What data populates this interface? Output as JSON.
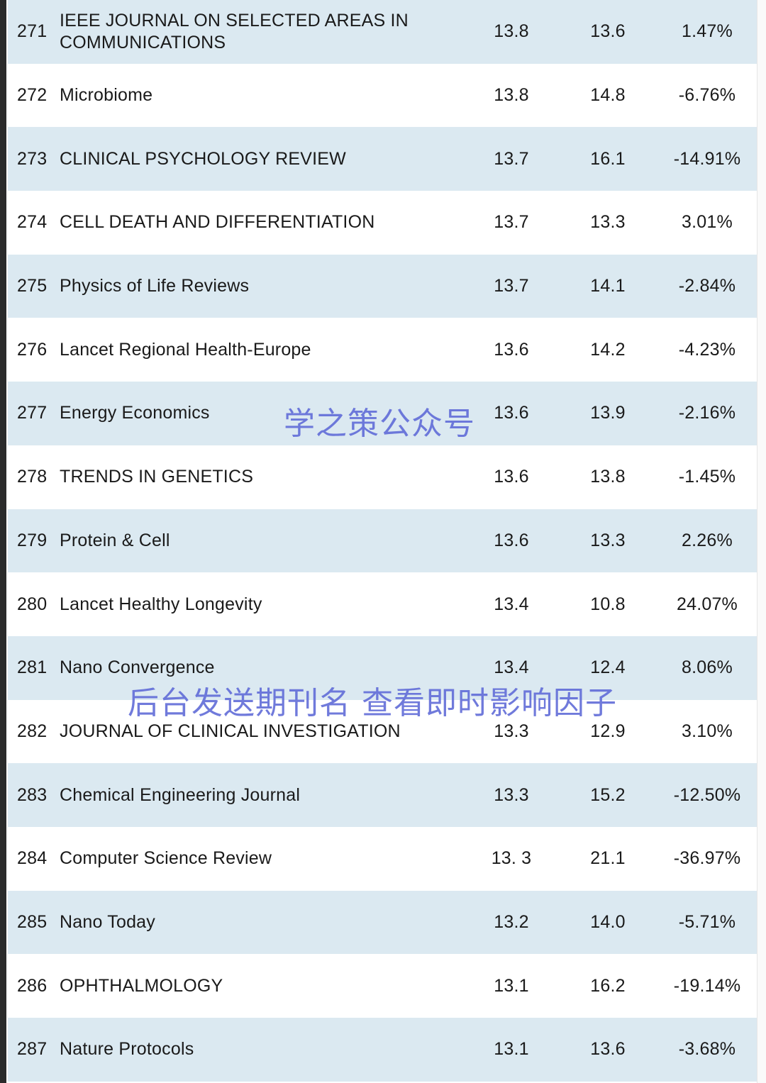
{
  "rows": [
    {
      "rank": "271",
      "name": "IEEE JOURNAL ON SELECTED AREAS IN COMMUNICATIONS",
      "if_current": "13.8",
      "if_previous": "13.6",
      "change": "1.47%"
    },
    {
      "rank": "272",
      "name": "Microbiome",
      "if_current": "13.8",
      "if_previous": "14.8",
      "change": "-6.76%"
    },
    {
      "rank": "273",
      "name": "CLINICAL PSYCHOLOGY REVIEW",
      "if_current": "13.7",
      "if_previous": "16.1",
      "change": "-14.91%"
    },
    {
      "rank": "274",
      "name": "CELL DEATH AND DIFFERENTIATION",
      "if_current": "13.7",
      "if_previous": "13.3",
      "change": "3.01%"
    },
    {
      "rank": "275",
      "name": "Physics of Life Reviews",
      "if_current": "13.7",
      "if_previous": "14.1",
      "change": "-2.84%"
    },
    {
      "rank": "276",
      "name": "Lancet Regional Health-Europe",
      "if_current": "13.6",
      "if_previous": "14.2",
      "change": "-4.23%"
    },
    {
      "rank": "277",
      "name": "Energy Economics",
      "if_current": "13.6",
      "if_previous": "13.9",
      "change": "-2.16%"
    },
    {
      "rank": "278",
      "name": "TRENDS IN GENETICS",
      "if_current": "13.6",
      "if_previous": "13.8",
      "change": "-1.45%"
    },
    {
      "rank": "279",
      "name": "Protein & Cell",
      "if_current": "13.6",
      "if_previous": "13.3",
      "change": "2.26%"
    },
    {
      "rank": "280",
      "name": "Lancet Healthy Longevity",
      "if_current": "13.4",
      "if_previous": "10.8",
      "change": "24.07%"
    },
    {
      "rank": "281",
      "name": "Nano Convergence",
      "if_current": "13.4",
      "if_previous": "12.4",
      "change": "8.06%"
    },
    {
      "rank": "282",
      "name": "JOURNAL OF CLINICAL INVESTIGATION",
      "if_current": "13.3",
      "if_previous": "12.9",
      "change": "3.10%"
    },
    {
      "rank": "283",
      "name": "Chemical Engineering Journal",
      "if_current": "13.3",
      "if_previous": "15.2",
      "change": "-12.50%"
    },
    {
      "rank": "284",
      "name": "Computer Science Review",
      "if_current": "13. 3",
      "if_previous": "21.1",
      "change": "-36.97%"
    },
    {
      "rank": "285",
      "name": "Nano Today",
      "if_current": "13.2",
      "if_previous": "14.0",
      "change": "-5.71%"
    },
    {
      "rank": "286",
      "name": "OPHTHALMOLOGY",
      "if_current": "13.1",
      "if_previous": "16.2",
      "change": "-19.14%"
    },
    {
      "rank": "287",
      "name": "Nature Protocols",
      "if_current": "13.1",
      "if_previous": "13.6",
      "change": "-3.68%"
    }
  ],
  "watermarks": {
    "account": "学之策公众号",
    "instruction": "后台发送期刊名 查看即时影响因子"
  },
  "colors": {
    "row_shaded": "#dbe9f1",
    "row_plain": "#ffffff",
    "watermark": "#5c68d6"
  }
}
